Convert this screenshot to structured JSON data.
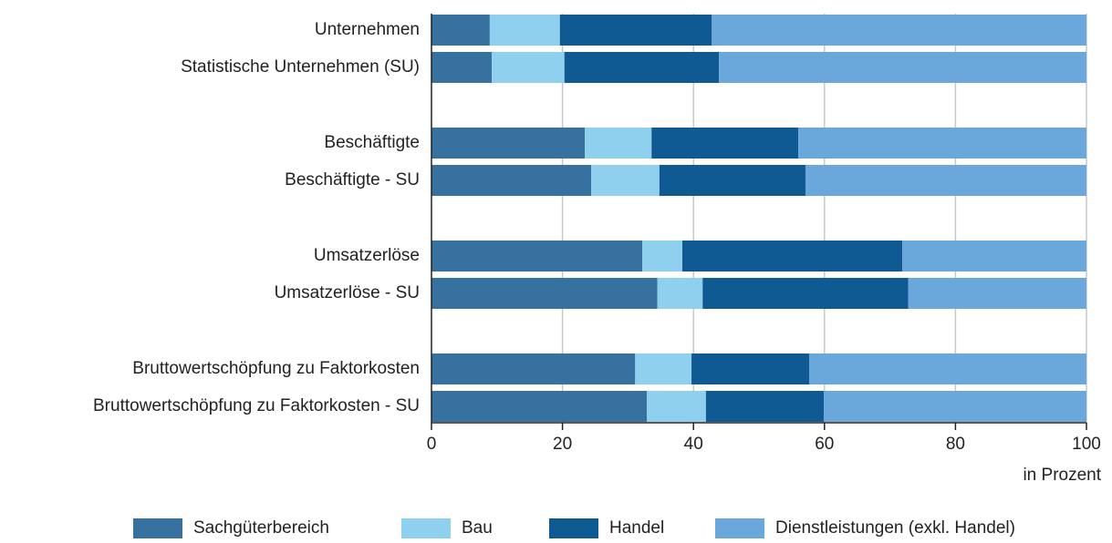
{
  "chart_data": {
    "type": "stacked-barh",
    "categories": [
      "Unternehmen",
      "Statistische Unternehmen (SU)",
      "Beschäftigte",
      "Beschäftigte - SU",
      "Umsatzerlöse",
      "Umsatzerlöse - SU",
      "Bruttowertschöpfung zu Faktorkosten",
      "Bruttowertschöpfung zu Faktorkosten - SU"
    ],
    "series": [
      {
        "name": "Sachgüterbereich",
        "color": "#36719f",
        "values": [
          8.9,
          9.2,
          23.4,
          24.4,
          32.2,
          34.5,
          31.1,
          32.9
        ]
      },
      {
        "name": "Bau",
        "color": "#8fd0ee",
        "values": [
          10.7,
          11.1,
          10.2,
          10.4,
          6.1,
          6.9,
          8.6,
          9.0
        ]
      },
      {
        "name": "Handel",
        "color": "#105a93",
        "values": [
          23.2,
          23.6,
          22.4,
          22.3,
          33.6,
          31.4,
          18.0,
          18.0
        ]
      },
      {
        "name": "Dienstleistungen (exkl. Handel)",
        "color": "#6aa8dc",
        "values": [
          57.2,
          56.1,
          44.0,
          42.9,
          28.1,
          27.2,
          42.3,
          40.1
        ]
      }
    ],
    "x_label": "in Prozent",
    "xlim": [
      0,
      100
    ],
    "xticks": [
      0,
      20,
      40,
      60,
      80,
      100
    ],
    "grid": true,
    "legend": "bottom"
  }
}
